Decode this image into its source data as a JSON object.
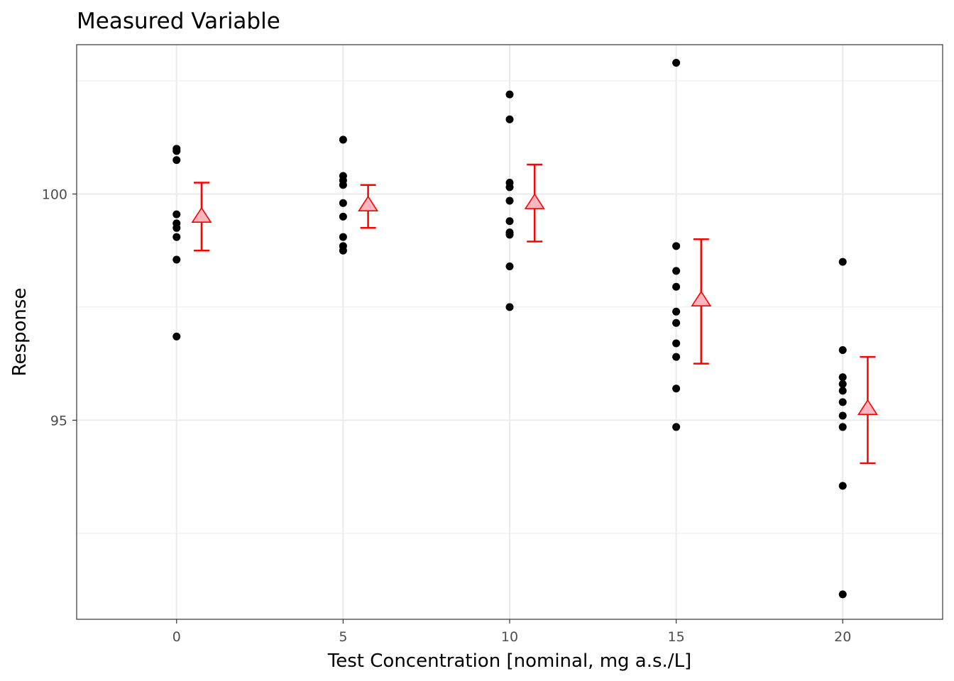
{
  "chart_data": {
    "type": "scatter",
    "title": "Measured Variable",
    "xlabel": "Test Concentration [nominal, mg a.s./L]",
    "ylabel": "Response",
    "xlim": [
      -3,
      23
    ],
    "ylim": [
      90.6,
      103.3
    ],
    "x_ticks": [
      0,
      5,
      10,
      15,
      20
    ],
    "y_ticks": [
      95,
      100
    ],
    "y_minor_ticks": [
      92.5,
      97.5,
      102.5
    ],
    "grid": true,
    "mean_marker_offset": 0.75,
    "colors": {
      "points": "#000000",
      "mean_stroke": "#ff0000",
      "mean_fill": "#ffb6c1",
      "grid": "#ebebeb",
      "panel_border": "#333333"
    },
    "points": [
      {
        "x": 0,
        "y": [
          101.0,
          100.95,
          100.75,
          99.55,
          99.35,
          99.25,
          99.05,
          98.55,
          96.85
        ]
      },
      {
        "x": 5,
        "y": [
          101.2,
          100.4,
          100.3,
          100.2,
          99.8,
          99.5,
          99.05,
          98.85,
          98.75
        ]
      },
      {
        "x": 10,
        "y": [
          102.2,
          101.65,
          100.25,
          100.15,
          99.85,
          99.4,
          99.15,
          99.1,
          98.4,
          97.5
        ]
      },
      {
        "x": 15,
        "y": [
          102.9,
          98.85,
          98.3,
          97.95,
          97.4,
          97.15,
          96.7,
          96.4,
          95.7,
          94.85
        ]
      },
      {
        "x": 20,
        "y": [
          98.5,
          96.55,
          95.95,
          95.8,
          95.65,
          95.4,
          95.1,
          94.85,
          93.55,
          91.15
        ]
      }
    ],
    "means": [
      {
        "x": 0,
        "mean": 99.5,
        "lower": 98.75,
        "upper": 100.25
      },
      {
        "x": 5,
        "mean": 99.75,
        "lower": 99.25,
        "upper": 100.2
      },
      {
        "x": 10,
        "mean": 99.8,
        "lower": 98.95,
        "upper": 100.65
      },
      {
        "x": 15,
        "mean": 97.65,
        "lower": 96.25,
        "upper": 99.0
      },
      {
        "x": 20,
        "mean": 95.25,
        "lower": 94.05,
        "upper": 96.4
      }
    ]
  }
}
